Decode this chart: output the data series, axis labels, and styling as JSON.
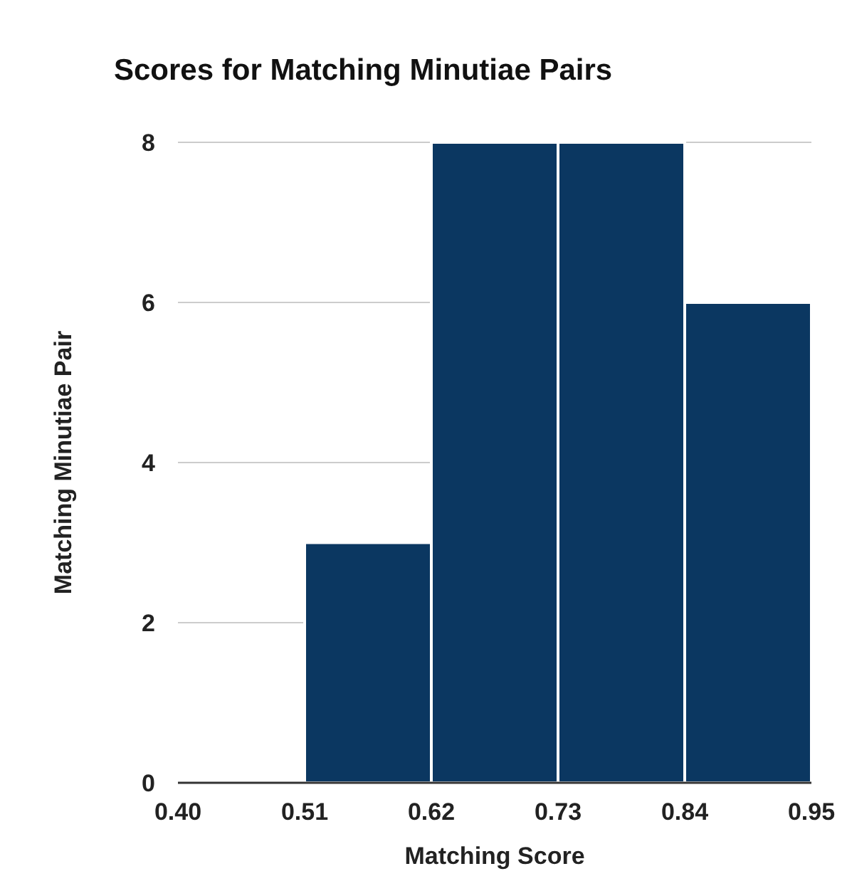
{
  "chart_data": {
    "type": "histogram",
    "title": "Scores for Matching Minutiae Pairs",
    "xlabel": "Matching Score",
    "ylabel": "Matching Minutiae Pair",
    "bins": [
      0.4,
      0.51,
      0.62,
      0.73,
      0.84,
      0.95
    ],
    "values": [
      0,
      3,
      8,
      8,
      6
    ],
    "color": "#0b3761",
    "xlim": [
      0.4,
      0.95
    ],
    "xticks": [
      {
        "value": 0.4,
        "label": "0.40"
      },
      0.51,
      0.62,
      0.73,
      0.84,
      0.95
    ],
    "ylim": [
      0,
      8
    ],
    "yticks": [
      0,
      2,
      4,
      6,
      8
    ],
    "grid": "y"
  }
}
